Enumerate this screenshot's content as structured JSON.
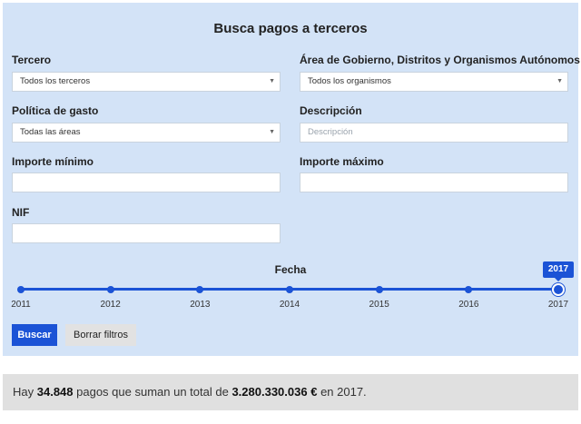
{
  "title": "Busca pagos a terceros",
  "filters": {
    "tercero": {
      "label": "Tercero",
      "value": "Todos los terceros"
    },
    "area": {
      "label": "Área de Gobierno, Distritos y Organismos Autónomos",
      "value": "Todos los organismos"
    },
    "politica": {
      "label": "Política de gasto",
      "value": "Todas las áreas"
    },
    "descripcion": {
      "label": "Descripción",
      "placeholder": "Descripción"
    },
    "importe_min": {
      "label": "Importe mínimo",
      "value": ""
    },
    "importe_max": {
      "label": "Importe máximo",
      "value": ""
    },
    "nif": {
      "label": "NIF",
      "value": ""
    }
  },
  "date_slider": {
    "label": "Fecha",
    "years": [
      "2011",
      "2012",
      "2013",
      "2014",
      "2015",
      "2016",
      "2017"
    ],
    "selected": "2017"
  },
  "buttons": {
    "search": "Buscar",
    "clear": "Borrar filtros"
  },
  "summary": {
    "prefix": "Hay",
    "count": "34.848",
    "middle": "pagos que suman un total de",
    "total": "3.280.330.036 €",
    "suffix": "en 2017."
  }
}
